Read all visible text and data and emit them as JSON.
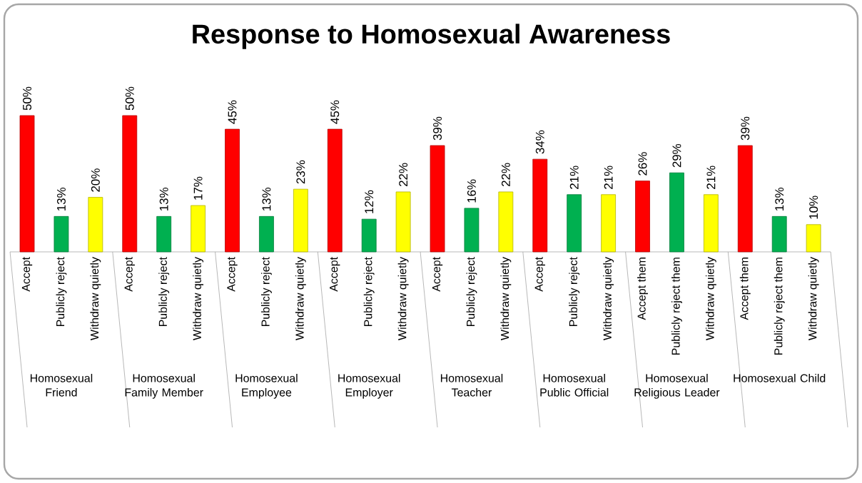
{
  "chart_data": {
    "type": "bar",
    "title": "Response to Homosexual Awareness",
    "categories": [
      "Accept",
      "Publicly reject",
      "Withdraw quietly",
      "Accept",
      "Publicly reject",
      "Withdraw quietly",
      "Accept",
      "Publicly reject",
      "Withdraw quietly",
      "Accept",
      "Publicly reject",
      "Withdraw quietly",
      "Accept",
      "Publicly reject",
      "Withdraw quietly",
      "Accept",
      "Publicly reject",
      "Withdraw quietly",
      "Accept them",
      "Publicly reject them",
      "Withdraw quietly",
      "Accept them",
      "Publicly reject them",
      "Withdraw quietly"
    ],
    "values": [
      50,
      13,
      20,
      50,
      13,
      17,
      45,
      13,
      23,
      45,
      12,
      22,
      39,
      16,
      22,
      34,
      21,
      21,
      26,
      29,
      21,
      39,
      13,
      10
    ],
    "value_labels": [
      "50%",
      "13%",
      "20%",
      "50%",
      "13%",
      "17%",
      "45%",
      "13%",
      "23%",
      "45%",
      "12%",
      "22%",
      "39%",
      "16%",
      "22%",
      "34%",
      "21%",
      "21%",
      "26%",
      "29%",
      "21%",
      "39%",
      "13%",
      "10%"
    ],
    "colors": [
      "#ff0000",
      "#00b050",
      "#ffff00",
      "#ff0000",
      "#00b050",
      "#ffff00",
      "#ff0000",
      "#00b050",
      "#ffff00",
      "#ff0000",
      "#00b050",
      "#ffff00",
      "#ff0000",
      "#00b050",
      "#ffff00",
      "#ff0000",
      "#00b050",
      "#ffff00",
      "#ff0000",
      "#00b050",
      "#ffff00",
      "#ff0000",
      "#00b050",
      "#ffff00"
    ],
    "annotations": [
      "Homosexual Friend",
      "Homosexual Family Member",
      "Homosexual Employee",
      "Homosexual Employer",
      "Homosexual Teacher",
      "Homosexual Public Official",
      "Homosexual Religious Leader",
      "Homosexual Child"
    ]
  }
}
